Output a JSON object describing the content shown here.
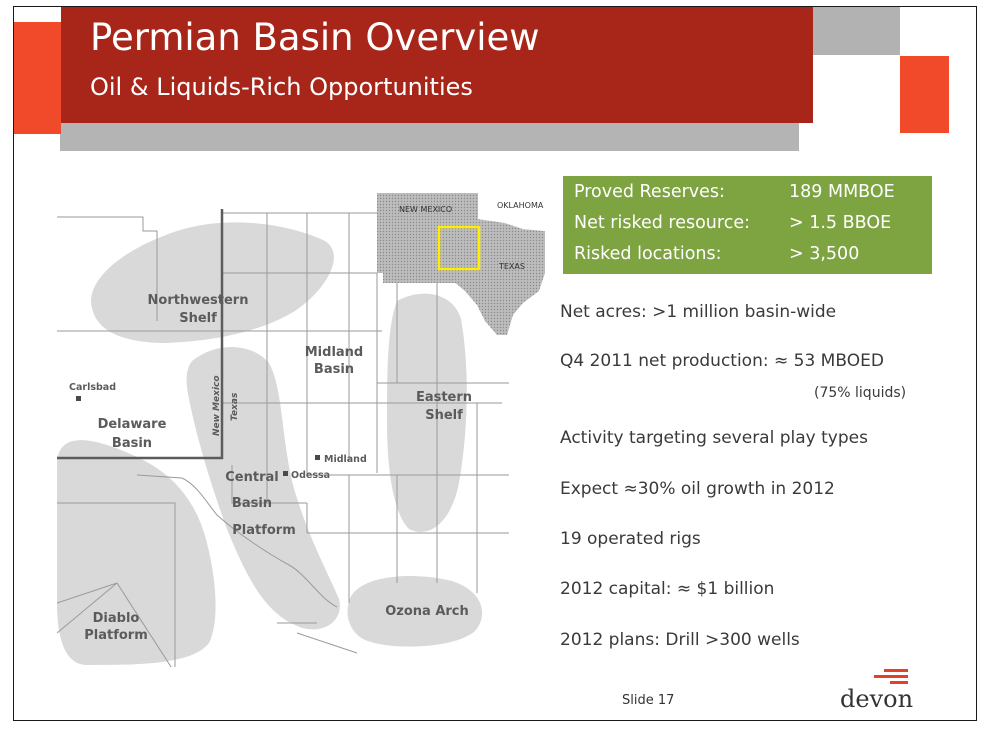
{
  "header": {
    "title": "Permian Basin Overview",
    "subtitle": "Oil & Liquids-Rich Opportunities"
  },
  "map": {
    "regions": {
      "northwestern_shelf_line1": "Northwestern",
      "northwestern_shelf_line2": "Shelf",
      "midland_basin_line1": "Midland",
      "midland_basin_line2": "Basin",
      "eastern_shelf_line1": "Eastern",
      "eastern_shelf_line2": "Shelf",
      "delaware_basin_line1": "Delaware",
      "delaware_basin_line2": "Basin",
      "central_basin_line1": "Central",
      "central_basin_line2": "Basin",
      "central_basin_line3": "Platform",
      "diablo_line1": "Diablo",
      "diablo_line2": "Platform",
      "ozona_arch": "Ozona Arch"
    },
    "cities": {
      "carlsbad": "Carlsbad",
      "midland": "Midland",
      "odessa": "Odessa"
    },
    "state_border": {
      "new_mexico": "New Mexico",
      "texas": "Texas"
    }
  },
  "inset_map": {
    "new_mexico": "NEW MEXICO",
    "oklahoma": "OKLAHOMA",
    "texas": "TEXAS"
  },
  "highlights": {
    "rows": [
      {
        "label": "Proved Reserves:",
        "value": "189 MMBOE"
      },
      {
        "label": "Net risked resource:",
        "value": "> 1.5 BBOE"
      },
      {
        "label": "Risked locations:",
        "value": "> 3,500"
      }
    ]
  },
  "bullets": {
    "net_acres": "Net acres: >1 million basin-wide",
    "production": "Q4 2011 net production: ≈ 53 MBOED",
    "production_note": "(75% liquids)",
    "activity": "Activity targeting several play types",
    "growth": "Expect ≈30% oil growth in 2012",
    "rigs": "19 operated rigs",
    "capital": "2012 capital: ≈ $1 billion",
    "plans": "2012 plans: Drill >300 wells"
  },
  "footer": {
    "slide_number": "Slide 17",
    "logo": "devon"
  },
  "colors": {
    "header_red": "#a72519",
    "accent_orange": "#f04a2a",
    "header_gray": "#b2b2b2",
    "highlight_green": "#7ea341",
    "region_gray": "#d9d9d9"
  }
}
